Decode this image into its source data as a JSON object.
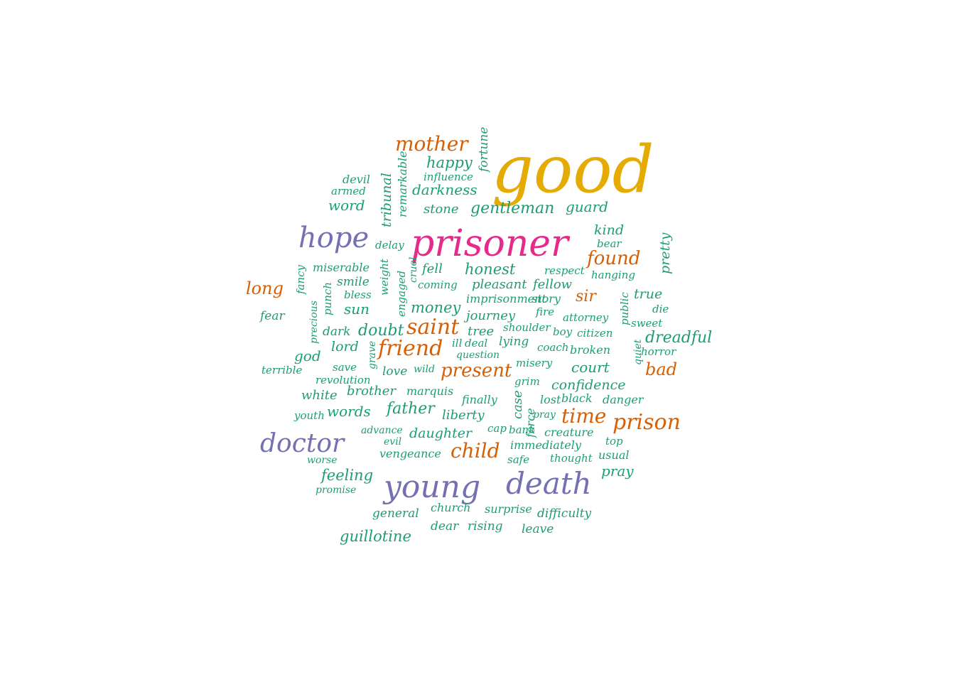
{
  "colors": {
    "teal": "#1b9e77",
    "orange": "#d95f02",
    "purple": "#7570b3",
    "magenta": "#e7298a",
    "gold": "#e6ab02"
  },
  "words": [
    {
      "text": "good",
      "color": "gold"
    },
    {
      "text": "prisoner",
      "color": "magenta"
    },
    {
      "text": "young",
      "color": "purple"
    },
    {
      "text": "death",
      "color": "purple"
    },
    {
      "text": "hope",
      "color": "purple"
    },
    {
      "text": "doctor",
      "color": "purple"
    },
    {
      "text": "mother",
      "color": "orange"
    },
    {
      "text": "found",
      "color": "orange"
    },
    {
      "text": "long",
      "color": "orange"
    },
    {
      "text": "sir",
      "color": "orange"
    },
    {
      "text": "saint",
      "color": "orange"
    },
    {
      "text": "friend",
      "color": "orange"
    },
    {
      "text": "present",
      "color": "orange"
    },
    {
      "text": "bad",
      "color": "orange"
    },
    {
      "text": "time",
      "color": "orange"
    },
    {
      "text": "prison",
      "color": "orange"
    },
    {
      "text": "child",
      "color": "orange"
    },
    {
      "text": "happy",
      "color": "teal"
    },
    {
      "text": "fortune",
      "color": "teal"
    },
    {
      "text": "influence",
      "color": "teal"
    },
    {
      "text": "devil",
      "color": "teal"
    },
    {
      "text": "armed",
      "color": "teal"
    },
    {
      "text": "darkness",
      "color": "teal"
    },
    {
      "text": "tribunal",
      "color": "teal"
    },
    {
      "text": "remarkable",
      "color": "teal"
    },
    {
      "text": "word",
      "color": "teal"
    },
    {
      "text": "stone",
      "color": "teal"
    },
    {
      "text": "gentleman",
      "color": "teal"
    },
    {
      "text": "guard",
      "color": "teal"
    },
    {
      "text": "kind",
      "color": "teal"
    },
    {
      "text": "bear",
      "color": "teal"
    },
    {
      "text": "pretty",
      "color": "teal"
    },
    {
      "text": "delay",
      "color": "teal"
    },
    {
      "text": "fancy",
      "color": "teal"
    },
    {
      "text": "miserable",
      "color": "teal"
    },
    {
      "text": "weight",
      "color": "teal"
    },
    {
      "text": "cruel",
      "color": "teal"
    },
    {
      "text": "fell",
      "color": "teal"
    },
    {
      "text": "honest",
      "color": "teal"
    },
    {
      "text": "respect",
      "color": "teal"
    },
    {
      "text": "hanging",
      "color": "teal"
    },
    {
      "text": "smile",
      "color": "teal"
    },
    {
      "text": "punch",
      "color": "teal"
    },
    {
      "text": "engaged",
      "color": "teal"
    },
    {
      "text": "coming",
      "color": "teal"
    },
    {
      "text": "pleasant",
      "color": "teal"
    },
    {
      "text": "fellow",
      "color": "teal"
    },
    {
      "text": "true",
      "color": "teal"
    },
    {
      "text": "bless",
      "color": "teal"
    },
    {
      "text": "imprisonment",
      "color": "teal"
    },
    {
      "text": "story",
      "color": "teal"
    },
    {
      "text": "public",
      "color": "teal"
    },
    {
      "text": "fear",
      "color": "teal"
    },
    {
      "text": "precious",
      "color": "teal"
    },
    {
      "text": "sun",
      "color": "teal"
    },
    {
      "text": "money",
      "color": "teal"
    },
    {
      "text": "journey",
      "color": "teal"
    },
    {
      "text": "fire",
      "color": "teal"
    },
    {
      "text": "attorney",
      "color": "teal"
    },
    {
      "text": "die",
      "color": "teal"
    },
    {
      "text": "sweet",
      "color": "teal"
    },
    {
      "text": "dark",
      "color": "teal"
    },
    {
      "text": "doubt",
      "color": "teal"
    },
    {
      "text": "tree",
      "color": "teal"
    },
    {
      "text": "shoulder",
      "color": "teal"
    },
    {
      "text": "boy",
      "color": "teal"
    },
    {
      "text": "citizen",
      "color": "teal"
    },
    {
      "text": "dreadful",
      "color": "teal"
    },
    {
      "text": "lord",
      "color": "teal"
    },
    {
      "text": "ill",
      "color": "teal"
    },
    {
      "text": "deal",
      "color": "teal"
    },
    {
      "text": "lying",
      "color": "teal"
    },
    {
      "text": "coach",
      "color": "teal"
    },
    {
      "text": "broken",
      "color": "teal"
    },
    {
      "text": "quiet",
      "color": "teal"
    },
    {
      "text": "horror",
      "color": "teal"
    },
    {
      "text": "god",
      "color": "teal"
    },
    {
      "text": "grave",
      "color": "teal"
    },
    {
      "text": "question",
      "color": "teal"
    },
    {
      "text": "terrible",
      "color": "teal"
    },
    {
      "text": "save",
      "color": "teal"
    },
    {
      "text": "love",
      "color": "teal"
    },
    {
      "text": "wild",
      "color": "teal"
    },
    {
      "text": "misery",
      "color": "teal"
    },
    {
      "text": "court",
      "color": "teal"
    },
    {
      "text": "revolution",
      "color": "teal"
    },
    {
      "text": "grim",
      "color": "teal"
    },
    {
      "text": "confidence",
      "color": "teal"
    },
    {
      "text": "white",
      "color": "teal"
    },
    {
      "text": "brother",
      "color": "teal"
    },
    {
      "text": "marquis",
      "color": "teal"
    },
    {
      "text": "finally",
      "color": "teal"
    },
    {
      "text": "case",
      "color": "teal"
    },
    {
      "text": "lost",
      "color": "teal"
    },
    {
      "text": "black",
      "color": "teal"
    },
    {
      "text": "danger",
      "color": "teal"
    },
    {
      "text": "youth",
      "color": "teal"
    },
    {
      "text": "words",
      "color": "teal"
    },
    {
      "text": "father",
      "color": "teal"
    },
    {
      "text": "liberty",
      "color": "teal"
    },
    {
      "text": "force",
      "color": "teal"
    },
    {
      "text": "pray",
      "color": "teal"
    },
    {
      "text": "advance",
      "color": "teal"
    },
    {
      "text": "daughter",
      "color": "teal"
    },
    {
      "text": "cap",
      "color": "teal"
    },
    {
      "text": "bank",
      "color": "teal"
    },
    {
      "text": "creature",
      "color": "teal"
    },
    {
      "text": "evil",
      "color": "teal"
    },
    {
      "text": "immediately",
      "color": "teal"
    },
    {
      "text": "top",
      "color": "teal"
    },
    {
      "text": "vengeance",
      "color": "teal"
    },
    {
      "text": "usual",
      "color": "teal"
    },
    {
      "text": "worse",
      "color": "teal"
    },
    {
      "text": "safe",
      "color": "teal"
    },
    {
      "text": "thought",
      "color": "teal"
    },
    {
      "text": "feeling",
      "color": "teal"
    },
    {
      "text": "pray",
      "color": "teal"
    },
    {
      "text": "promise",
      "color": "teal"
    },
    {
      "text": "general",
      "color": "teal"
    },
    {
      "text": "church",
      "color": "teal"
    },
    {
      "text": "surprise",
      "color": "teal"
    },
    {
      "text": "difficulty",
      "color": "teal"
    },
    {
      "text": "dear",
      "color": "teal"
    },
    {
      "text": "rising",
      "color": "teal"
    },
    {
      "text": "leave",
      "color": "teal"
    },
    {
      "text": "guillotine",
      "color": "teal"
    }
  ]
}
